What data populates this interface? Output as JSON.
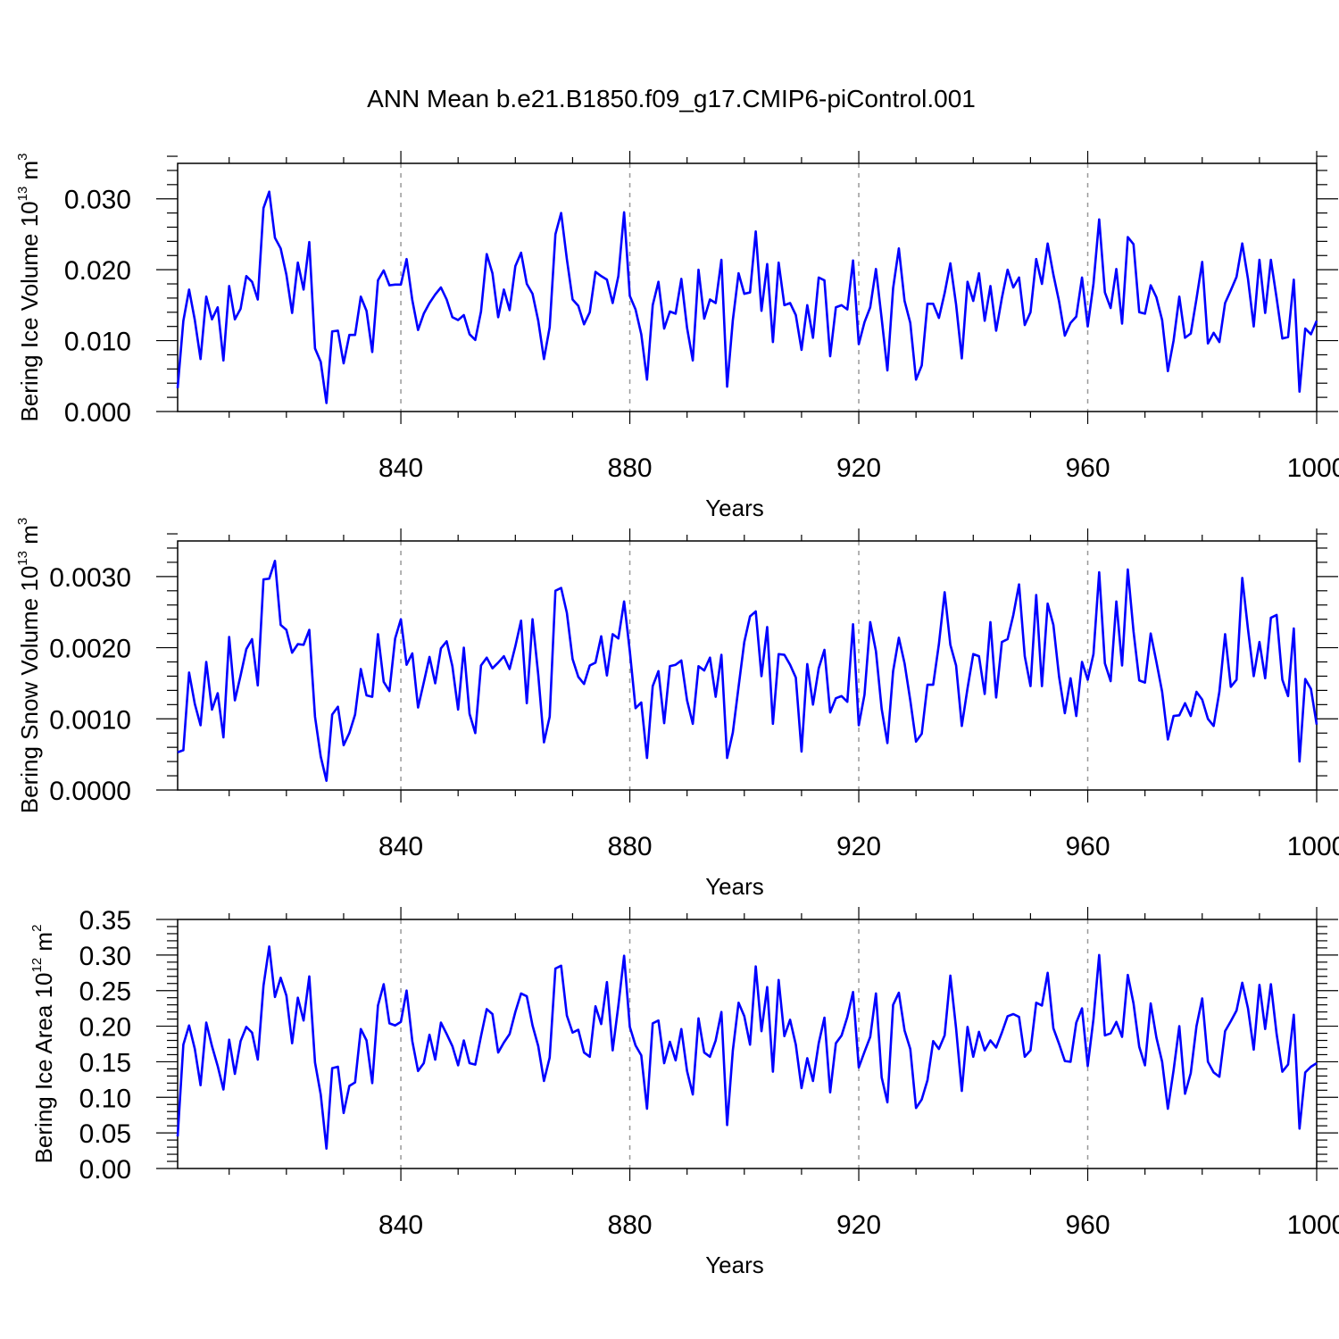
{
  "title": "ANN Mean b.e21.B1850.f09_g17.CMIP6-piControl.001",
  "line_color": "#0000ff",
  "chart_data": [
    {
      "type": "line",
      "ylabel": "Bering Ice Volume 10",
      "ylabel_exp": "13",
      "ylabel_unit": " m",
      "ylabel_unit_exp": "3",
      "xlabel": "Years",
      "xlim": [
        801,
        1000
      ],
      "ylim": [
        0.0,
        0.035
      ],
      "x_ticks": [
        840,
        880,
        920,
        960,
        1000
      ],
      "x_tick_labels": [
        "840",
        "880",
        "920",
        "960",
        "1000"
      ],
      "y_ticks": [
        0.0,
        0.01,
        0.02,
        0.03
      ],
      "y_tick_labels": [
        "0.000",
        "0.010",
        "0.020",
        "0.030"
      ],
      "grid_x": [
        840,
        880,
        920,
        960
      ],
      "x_start": 801,
      "values": [
        0.0033,
        0.0128,
        0.0172,
        0.0129,
        0.0074,
        0.0162,
        0.013,
        0.0147,
        0.0072,
        0.0177,
        0.013,
        0.0145,
        0.0191,
        0.0183,
        0.0158,
        0.0287,
        0.031,
        0.0245,
        0.023,
        0.0193,
        0.0139,
        0.021,
        0.0172,
        0.0239,
        0.0089,
        0.007,
        0.0012,
        0.0113,
        0.0114,
        0.0068,
        0.0108,
        0.0108,
        0.0162,
        0.0142,
        0.0084,
        0.0185,
        0.0199,
        0.0178,
        0.0179,
        0.0179,
        0.0215,
        0.0157,
        0.0115,
        0.0138,
        0.0153,
        0.0165,
        0.0175,
        0.0158,
        0.0133,
        0.0129,
        0.0136,
        0.0109,
        0.0101,
        0.0141,
        0.0222,
        0.0195,
        0.0133,
        0.0172,
        0.0143,
        0.0205,
        0.0224,
        0.018,
        0.0166,
        0.0128,
        0.0074,
        0.0119,
        0.025,
        0.028,
        0.0215,
        0.0158,
        0.0149,
        0.0123,
        0.014,
        0.0197,
        0.0191,
        0.0186,
        0.0153,
        0.0191,
        0.0281,
        0.0163,
        0.0144,
        0.0109,
        0.0045,
        0.015,
        0.0183,
        0.0117,
        0.0141,
        0.0138,
        0.0187,
        0.0118,
        0.0072,
        0.02,
        0.0131,
        0.0158,
        0.0153,
        0.0214,
        0.0035,
        0.0129,
        0.0195,
        0.0166,
        0.0168,
        0.0254,
        0.0142,
        0.0208,
        0.0098,
        0.021,
        0.015,
        0.0153,
        0.0136,
        0.0087,
        0.015,
        0.0104,
        0.0189,
        0.0185,
        0.0078,
        0.0147,
        0.015,
        0.0144,
        0.0213,
        0.0095,
        0.0126,
        0.0147,
        0.0201,
        0.0131,
        0.0058,
        0.0174,
        0.023,
        0.0156,
        0.0125,
        0.0045,
        0.0065,
        0.0152,
        0.0152,
        0.0132,
        0.0167,
        0.0209,
        0.0151,
        0.0075,
        0.0183,
        0.0156,
        0.0195,
        0.0128,
        0.0177,
        0.0114,
        0.016,
        0.02,
        0.0175,
        0.0189,
        0.0122,
        0.014,
        0.0215,
        0.018,
        0.0237,
        0.0193,
        0.0155,
        0.0107,
        0.0125,
        0.0134,
        0.0189,
        0.012,
        0.018,
        0.0271,
        0.0168,
        0.0146,
        0.0201,
        0.0124,
        0.0246,
        0.0236,
        0.014,
        0.0138,
        0.0178,
        0.0161,
        0.0129,
        0.0057,
        0.01,
        0.0162,
        0.0104,
        0.011,
        0.0159,
        0.0211,
        0.0096,
        0.0111,
        0.0098,
        0.0153,
        0.0171,
        0.019,
        0.0237,
        0.0187,
        0.012,
        0.0214,
        0.0139,
        0.0214,
        0.016,
        0.0103,
        0.0105,
        0.0186,
        0.0028,
        0.0117,
        0.0109,
        0.0128
      ]
    },
    {
      "type": "line",
      "ylabel": "Bering Snow Volume 10",
      "ylabel_exp": "13",
      "ylabel_unit": " m",
      "ylabel_unit_exp": "3",
      "xlabel": "Years",
      "xlim": [
        801,
        1000
      ],
      "ylim": [
        0.0,
        0.0035
      ],
      "x_ticks": [
        840,
        880,
        920,
        960,
        1000
      ],
      "x_tick_labels": [
        "840",
        "880",
        "920",
        "960",
        "1000"
      ],
      "y_ticks": [
        0.0,
        0.001,
        0.002,
        0.003
      ],
      "y_tick_labels": [
        "0.0000",
        "0.0010",
        "0.0020",
        "0.0030"
      ],
      "grid_x": [
        840,
        880,
        920,
        960
      ],
      "x_start": 801,
      "values": [
        0.00053,
        0.00056,
        0.00165,
        0.00121,
        0.00091,
        0.0018,
        0.00113,
        0.00136,
        0.00074,
        0.00215,
        0.00126,
        0.00161,
        0.00198,
        0.00212,
        0.00147,
        0.00296,
        0.00297,
        0.00322,
        0.00232,
        0.00225,
        0.00193,
        0.00205,
        0.00204,
        0.00225,
        0.00103,
        0.00047,
        0.00013,
        0.00106,
        0.00117,
        0.00063,
        0.0008,
        0.00106,
        0.0017,
        0.00133,
        0.00131,
        0.00219,
        0.00152,
        0.00139,
        0.00213,
        0.0024,
        0.00176,
        0.00192,
        0.00116,
        0.00151,
        0.00187,
        0.0015,
        0.00199,
        0.00209,
        0.00174,
        0.00113,
        0.002,
        0.00107,
        0.0008,
        0.00175,
        0.00186,
        0.00171,
        0.00179,
        0.00188,
        0.0017,
        0.00202,
        0.00238,
        0.00122,
        0.0024,
        0.00162,
        0.00067,
        0.00103,
        0.0028,
        0.00284,
        0.00249,
        0.00184,
        0.00159,
        0.00149,
        0.00175,
        0.00179,
        0.00216,
        0.00161,
        0.00219,
        0.00213,
        0.00265,
        0.00195,
        0.00115,
        0.00123,
        0.00045,
        0.00146,
        0.00167,
        0.00094,
        0.00174,
        0.00176,
        0.00182,
        0.00126,
        0.00093,
        0.00174,
        0.00168,
        0.00186,
        0.00131,
        0.0019,
        0.00045,
        0.00081,
        0.00145,
        0.00208,
        0.00244,
        0.00251,
        0.0016,
        0.00229,
        0.00093,
        0.00191,
        0.0019,
        0.00176,
        0.00158,
        0.00054,
        0.00177,
        0.0012,
        0.00171,
        0.00197,
        0.00109,
        0.00129,
        0.00132,
        0.00124,
        0.00233,
        0.00091,
        0.00134,
        0.00236,
        0.00195,
        0.00114,
        0.00066,
        0.00167,
        0.00214,
        0.00178,
        0.00126,
        0.00068,
        0.00079,
        0.00148,
        0.00148,
        0.00205,
        0.00278,
        0.00204,
        0.00175,
        0.0009,
        0.00143,
        0.00191,
        0.00188,
        0.00135,
        0.00236,
        0.0013,
        0.00208,
        0.00212,
        0.00246,
        0.00289,
        0.00188,
        0.00146,
        0.00274,
        0.00146,
        0.00262,
        0.00232,
        0.00159,
        0.00108,
        0.00157,
        0.00104,
        0.0018,
        0.00155,
        0.00191,
        0.00306,
        0.00178,
        0.00153,
        0.00265,
        0.00175,
        0.0031,
        0.00223,
        0.00154,
        0.00151,
        0.0022,
        0.0018,
        0.00138,
        0.00071,
        0.00104,
        0.00105,
        0.00122,
        0.00104,
        0.00138,
        0.00127,
        0.001,
        0.0009,
        0.00138,
        0.00219,
        0.00145,
        0.00155,
        0.00298,
        0.00226,
        0.0016,
        0.00208,
        0.00157,
        0.00242,
        0.00246,
        0.00155,
        0.00132,
        0.00227,
        0.0004,
        0.00156,
        0.00142,
        0.00092
      ]
    },
    {
      "type": "line",
      "ylabel": "Bering Ice Area 10",
      "ylabel_exp": "12",
      "ylabel_unit": " m",
      "ylabel_unit_exp": "2",
      "xlabel": "Years",
      "xlim": [
        801,
        1000
      ],
      "ylim": [
        0.0,
        0.35
      ],
      "x_ticks": [
        840,
        880,
        920,
        960,
        1000
      ],
      "x_tick_labels": [
        "840",
        "880",
        "920",
        "960",
        "1000"
      ],
      "y_ticks": [
        0.0,
        0.05,
        0.1,
        0.15,
        0.2,
        0.25,
        0.3,
        0.35
      ],
      "y_tick_labels": [
        "0.00",
        "0.05",
        "0.10",
        "0.15",
        "0.20",
        "0.25",
        "0.30",
        "0.35"
      ],
      "grid_x": [
        840,
        880,
        920,
        960
      ],
      "x_start": 801,
      "values": [
        0.045,
        0.174,
        0.201,
        0.168,
        0.117,
        0.205,
        0.172,
        0.144,
        0.111,
        0.181,
        0.133,
        0.179,
        0.199,
        0.191,
        0.153,
        0.257,
        0.312,
        0.241,
        0.268,
        0.243,
        0.176,
        0.24,
        0.208,
        0.27,
        0.149,
        0.104,
        0.028,
        0.141,
        0.143,
        0.078,
        0.116,
        0.121,
        0.196,
        0.18,
        0.12,
        0.229,
        0.259,
        0.204,
        0.201,
        0.206,
        0.25,
        0.179,
        0.137,
        0.148,
        0.188,
        0.153,
        0.205,
        0.189,
        0.172,
        0.145,
        0.18,
        0.148,
        0.146,
        0.186,
        0.224,
        0.217,
        0.163,
        0.177,
        0.189,
        0.22,
        0.246,
        0.242,
        0.201,
        0.172,
        0.123,
        0.156,
        0.281,
        0.285,
        0.215,
        0.191,
        0.195,
        0.163,
        0.157,
        0.228,
        0.203,
        0.262,
        0.166,
        0.229,
        0.299,
        0.199,
        0.173,
        0.159,
        0.084,
        0.204,
        0.208,
        0.148,
        0.178,
        0.152,
        0.196,
        0.137,
        0.104,
        0.211,
        0.163,
        0.157,
        0.18,
        0.22,
        0.061,
        0.166,
        0.233,
        0.214,
        0.174,
        0.284,
        0.193,
        0.255,
        0.136,
        0.265,
        0.186,
        0.209,
        0.174,
        0.113,
        0.155,
        0.123,
        0.176,
        0.212,
        0.107,
        0.176,
        0.187,
        0.213,
        0.248,
        0.142,
        0.164,
        0.185,
        0.246,
        0.128,
        0.093,
        0.23,
        0.247,
        0.194,
        0.168,
        0.085,
        0.097,
        0.124,
        0.179,
        0.168,
        0.187,
        0.271,
        0.197,
        0.109,
        0.199,
        0.157,
        0.192,
        0.166,
        0.18,
        0.17,
        0.191,
        0.214,
        0.217,
        0.213,
        0.157,
        0.166,
        0.233,
        0.229,
        0.275,
        0.197,
        0.175,
        0.151,
        0.15,
        0.205,
        0.225,
        0.144,
        0.21,
        0.3,
        0.187,
        0.19,
        0.206,
        0.185,
        0.272,
        0.232,
        0.171,
        0.145,
        0.232,
        0.184,
        0.15,
        0.084,
        0.138,
        0.2,
        0.105,
        0.134,
        0.2,
        0.239,
        0.15,
        0.135,
        0.129,
        0.193,
        0.207,
        0.222,
        0.261,
        0.225,
        0.167,
        0.258,
        0.196,
        0.259,
        0.189,
        0.136,
        0.146,
        0.216,
        0.056,
        0.135,
        0.143,
        0.148
      ]
    }
  ]
}
